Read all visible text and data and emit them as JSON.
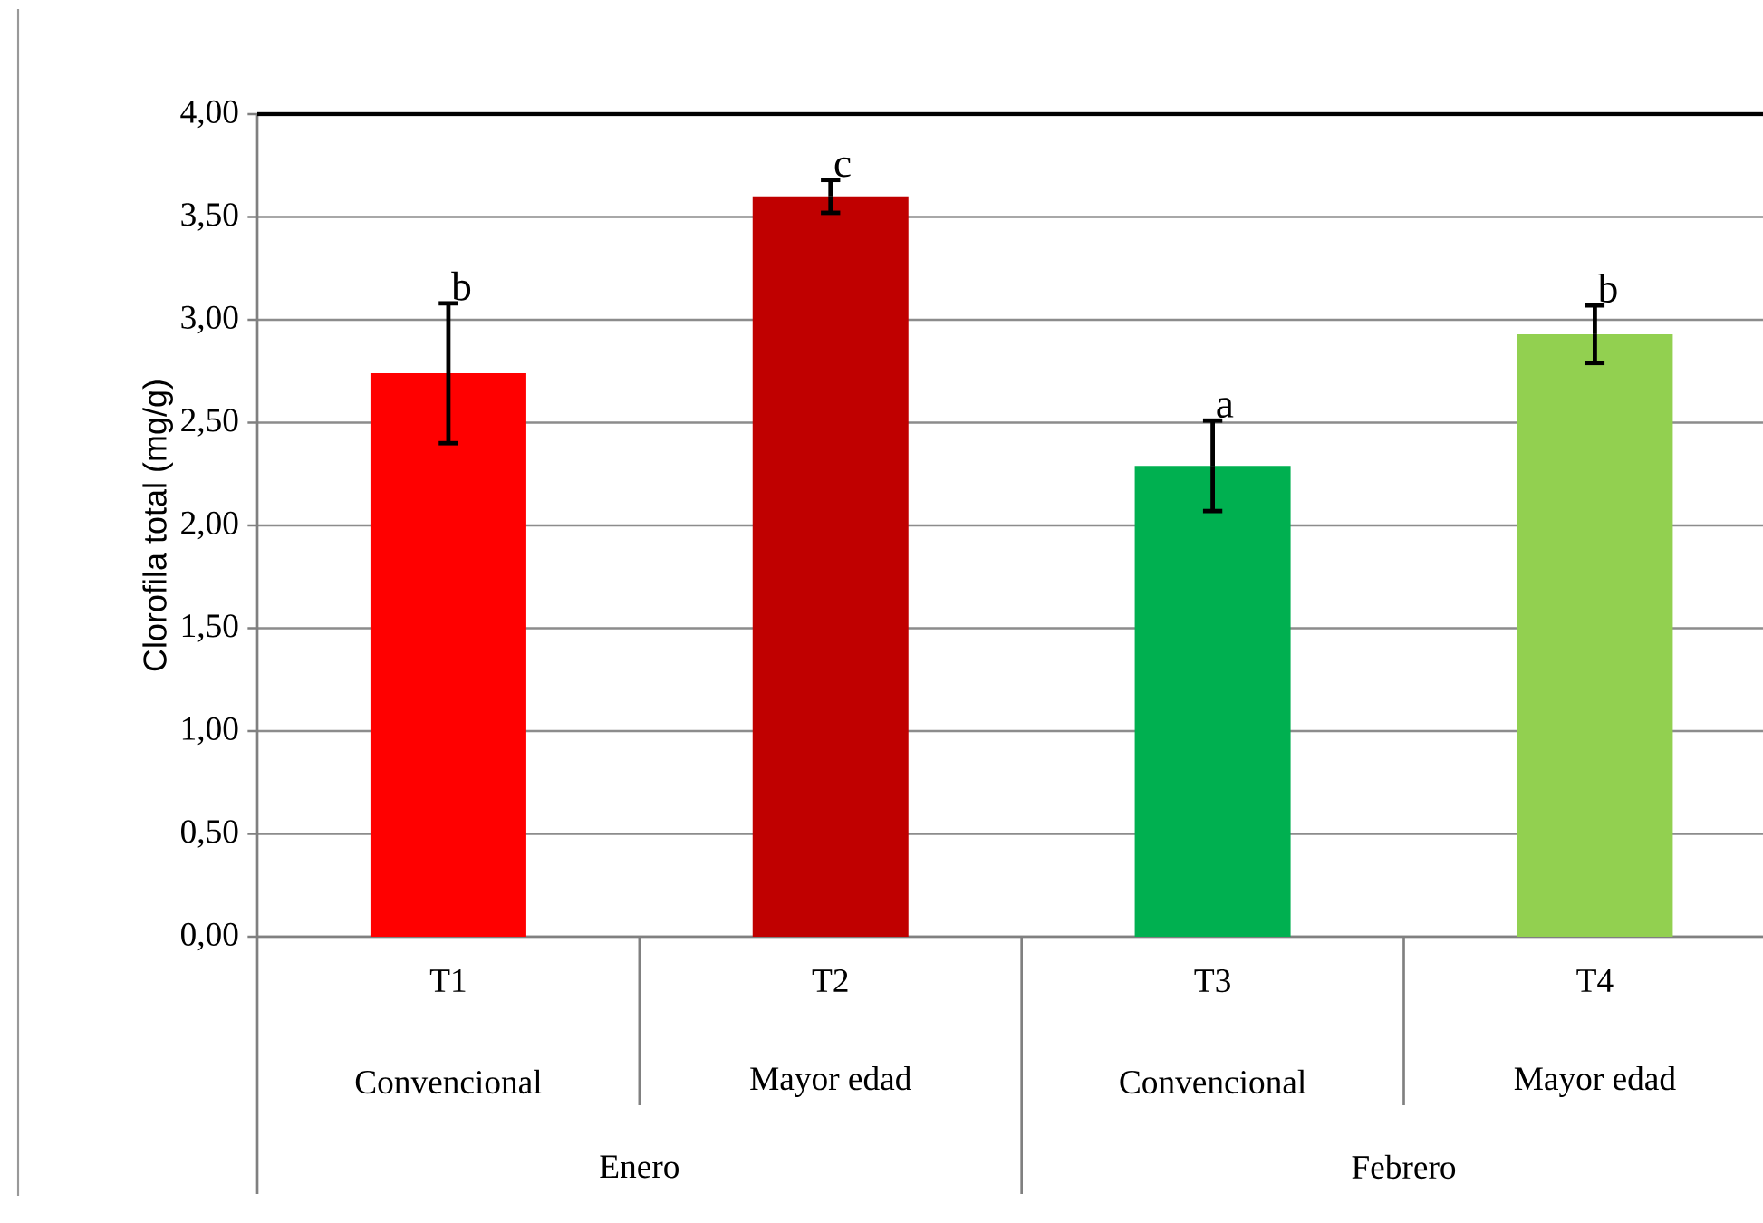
{
  "chart_data": {
    "type": "bar",
    "ylabel": "Clorofila total  (mg/g)",
    "categories": [
      "T1",
      "T2",
      "T3",
      "T4"
    ],
    "values": [
      2.74,
      3.6,
      2.29,
      2.93
    ],
    "errors": [
      0.34,
      0.08,
      0.22,
      0.14
    ],
    "colors": [
      "#ff0000",
      "#c00000",
      "#00b050",
      "#92d050"
    ],
    "ylim": [
      0,
      4
    ],
    "yticks": [
      {
        "value": 0,
        "label": "0,00"
      },
      {
        "value": 0.5,
        "label": "0,50"
      },
      {
        "value": 1,
        "label": "1,00"
      },
      {
        "value": 1.5,
        "label": "1,50"
      },
      {
        "value": 2,
        "label": "2,00"
      },
      {
        "value": 2.5,
        "label": "2,50"
      },
      {
        "value": 3,
        "label": "3,00"
      },
      {
        "value": 3.5,
        "label": "3,50"
      },
      {
        "value": 4,
        "label": "4,00"
      }
    ],
    "grid": "y",
    "annotations": [
      {
        "text": "b",
        "x": "T1",
        "y": 3.08
      },
      {
        "text": "c",
        "x": "T2",
        "y": 3.68
      },
      {
        "text": "a",
        "x": "T3",
        "y": 2.51
      },
      {
        "text": "b",
        "x": "T4",
        "y": 3.07
      },
      "Convencional",
      "Mayor edad",
      "Convencional",
      "Mayor edad",
      "Enero",
      "Febrero"
    ]
  }
}
